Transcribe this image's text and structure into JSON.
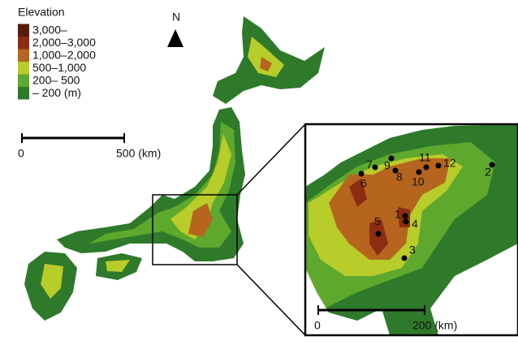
{
  "legend": {
    "title": "Elevation",
    "items": [
      {
        "label": "3,000–",
        "color": "#5a1a0e"
      },
      {
        "label": "2,000–3,000",
        "color": "#8c2d12"
      },
      {
        "label": "1,000–2,000",
        "color": "#b5651d"
      },
      {
        "label": "500–1,000",
        "color": "#b8cc2a"
      },
      {
        "label": "200– 500",
        "color": "#5fa82e"
      },
      {
        "label": "– 200 (m)",
        "color": "#2e7a2a"
      }
    ]
  },
  "north": "N",
  "scale_main": {
    "start": "0",
    "end": "500 (km)"
  },
  "scale_inset": {
    "start": "0",
    "end": "200 (km)"
  },
  "sites": [
    "1",
    "2",
    "3",
    "4",
    "5",
    "6",
    "7",
    "8",
    "9",
    "10",
    "11",
    "12"
  ]
}
